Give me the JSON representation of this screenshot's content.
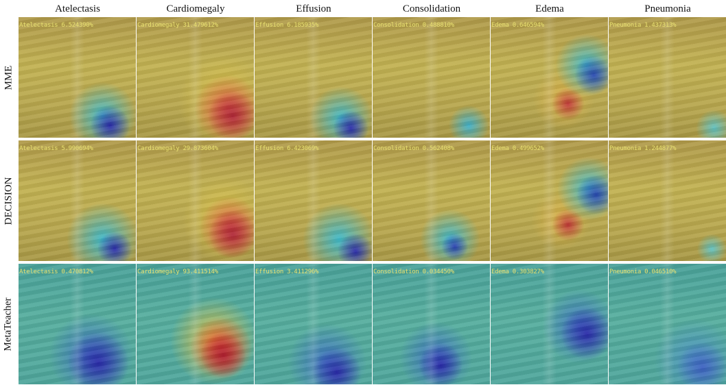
{
  "columns": [
    "Atelectasis",
    "Cardiomegaly",
    "Effusion",
    "Consolidation",
    "Edema",
    "Pneumonia"
  ],
  "rows": [
    {
      "label": "MME",
      "cells": [
        "Atelectasis 6.524390%",
        "Cardiomegaly 31.479612%",
        "Effusion 6.185935%",
        "Consolidation 0.488810%",
        "Edema 0.646594%",
        "Pneumonia 1.437313%"
      ]
    },
    {
      "label": "DECISION",
      "cells": [
        "Atelectasis 5.990694%",
        "Cardiomegaly 29.873604%",
        "Effusion 6.423069%",
        "Consolidation 0.562408%",
        "Edema 0.499652%",
        "Pneumonia 1.244877%"
      ]
    },
    {
      "label": "MetaTeacher",
      "cells": [
        "Atelectasis 0.470812%",
        "Cardiomegaly 93.411514%",
        "Effusion 3.411296%",
        "Consolidation 0.034450%",
        "Edema 0.303827%",
        "Pneumonia 0.046510%"
      ]
    }
  ]
}
